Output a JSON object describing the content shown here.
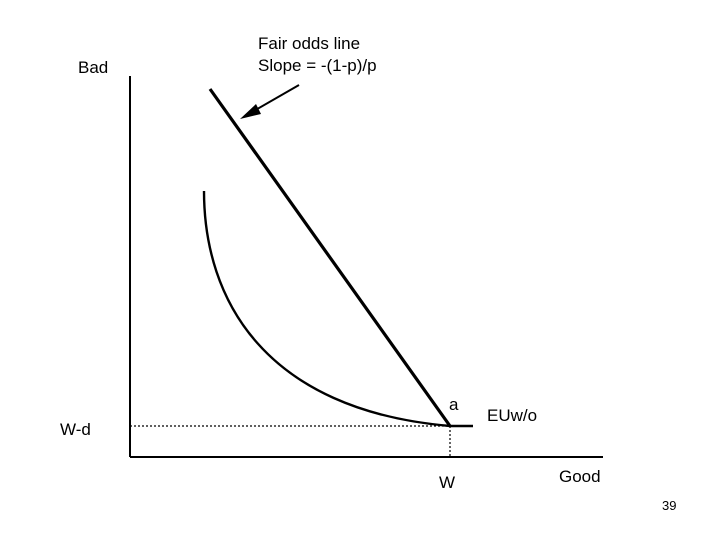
{
  "diagram": {
    "axis_labels": {
      "y_axis": "Bad",
      "x_axis": "Good"
    },
    "annotation": {
      "line1": "Fair odds line",
      "line2": "Slope = -(1-p)/p"
    },
    "point_label": "a",
    "curve_label": "EUw/o",
    "y_tick": "W-d",
    "x_tick": "W"
  },
  "slide": {
    "page_number": "39"
  }
}
